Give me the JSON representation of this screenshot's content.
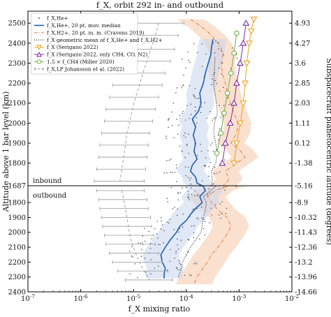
{
  "chart_data": {
    "type": "line",
    "title": "f_X, orbit 292 in- and outbound",
    "xlabel": "f_X mixing ratio",
    "ylabel": "Altitude above 1 bar level (km)",
    "y2label": "Subspacecraft planetocentric latitude (degrees)",
    "xscale": "log",
    "xlim": [
      1e-07,
      0.01
    ],
    "x_ticks": [
      {
        "v": 1e-07,
        "label": "10^-7"
      },
      {
        "v": 1e-06,
        "label": "10^-6"
      },
      {
        "v": 1e-05,
        "label": "10^-5"
      },
      {
        "v": 0.0001,
        "label": "10^-4"
      },
      {
        "v": 0.001,
        "label": "10^-3"
      },
      {
        "v": 0.01,
        "label": "10^-2"
      }
    ],
    "panels": [
      {
        "name": "inbound",
        "ylim": [
          1687,
          2560
        ],
        "y_ticks": [
          "1800",
          "1900",
          "2000",
          "2100",
          "2200",
          "2300",
          "2400",
          "2500"
        ],
        "y2_ticks": [
          {
            "alt": 2500,
            "label": "4.93"
          },
          {
            "alt": 2400,
            "label": "4.27"
          },
          {
            "alt": 2300,
            "label": "3.6"
          },
          {
            "alt": 2200,
            "label": "2.85"
          },
          {
            "alt": 2100,
            "label": "2.03"
          },
          {
            "alt": 2000,
            "label": "1.11"
          },
          {
            "alt": 1900,
            "label": "0.12"
          },
          {
            "alt": 1800,
            "label": "-1.38"
          }
        ]
      },
      {
        "name": "outbound",
        "ylim": [
          1687,
          2400
        ],
        "y_ticks": [
          "1800",
          "1900",
          "2000",
          "2100",
          "2200",
          "2300",
          "2400"
        ],
        "y2_ticks": [
          {
            "alt": 1800,
            "label": "-8.9"
          },
          {
            "alt": 1900,
            "label": "-10.32"
          },
          {
            "alt": 2000,
            "label": "-11.43"
          },
          {
            "alt": 2100,
            "label": "-12.36"
          },
          {
            "alt": 2200,
            "label": "-13.2"
          },
          {
            "alt": 2300,
            "label": "-13.96"
          },
          {
            "alt": 2400,
            "label": "-14.66"
          }
        ]
      }
    ],
    "boundary": {
      "alt": 1687,
      "label": "1687",
      "y2_label": "-5.16"
    },
    "legend": [
      {
        "label": "f_X,He+",
        "style": "gray dots"
      },
      {
        "label": "f_X,He+, 20 pt. mov. median",
        "style": "blue line"
      },
      {
        "label": "f_X,H2+, 20 pt. m. m. (Cravens 2019)",
        "style": "orange dash-dot"
      },
      {
        "label": "f_X geometric mean of f_X,He+ and f_X,H2+",
        "style": "black dotted"
      },
      {
        "label": "f_X (Serigano 2022)",
        "style": "orange triangles"
      },
      {
        "label": "f_X (Serigano 2022, only CH4, CO, N2)",
        "style": "purple triangles"
      },
      {
        "label": "1.5 × f_CH4 (Miller 2020)",
        "style": "green circles"
      },
      {
        "label": "f_X,LP Johansson et al. (2022)",
        "style": "gray dashed error bars"
      }
    ],
    "series": [
      {
        "name": "f_X,He+, 20 pt. mov. median (inbound)",
        "color": "#1f5fb0",
        "points": [
          [
            2420,
            0.00032
          ],
          [
            2380,
            0.0003
          ],
          [
            2340,
            0.00029
          ],
          [
            2300,
            0.00026
          ],
          [
            2250,
            0.00023
          ],
          [
            2200,
            0.00021
          ],
          [
            2150,
            0.00018
          ],
          [
            2100,
            0.00019
          ],
          [
            2060,
            0.00017
          ],
          [
            2020,
            0.00013
          ],
          [
            1980,
            0.00015
          ],
          [
            1940,
            0.000135
          ],
          [
            1900,
            0.00015
          ],
          [
            1860,
            0.00014
          ],
          [
            1820,
            0.00016
          ],
          [
            1790,
            0.00013
          ],
          [
            1760,
            0.00012
          ],
          [
            1730,
            0.00015
          ],
          [
            1700,
            0.00016
          ],
          [
            1687,
            0.0002
          ]
        ]
      },
      {
        "name": "f_X,He+, 20 pt. mov. median (outbound)",
        "color": "#1f5fb0",
        "points": [
          [
            1690,
            0.00021
          ],
          [
            1720,
            0.00023
          ],
          [
            1760,
            0.00018
          ],
          [
            1800,
            0.0002
          ],
          [
            1840,
            0.00015
          ],
          [
            1880,
            0.00012
          ],
          [
            1920,
            0.0001
          ],
          [
            1960,
            7.5e-05
          ],
          [
            2000,
            6.5e-05
          ],
          [
            2050,
            5e-05
          ],
          [
            2100,
            4e-05
          ],
          [
            2150,
            3.3e-05
          ],
          [
            2200,
            3.5e-05
          ],
          [
            2240,
            4e-05
          ],
          [
            2280,
            3.8e-05
          ],
          [
            2310,
            3.8e-05
          ]
        ]
      },
      {
        "name": "f_X,H2+, 20 pt. m. m. (inbound)",
        "color": "#e07a3c",
        "points": [
          [
            2520,
            0.00012
          ],
          [
            2480,
            0.0002
          ],
          [
            2440,
            0.0003
          ],
          [
            2400,
            0.0004
          ],
          [
            2350,
            0.0005
          ],
          [
            2300,
            0.00046
          ],
          [
            2250,
            0.00048
          ],
          [
            2200,
            0.00055
          ],
          [
            2150,
            0.0006
          ],
          [
            2100,
            0.00068
          ],
          [
            2050,
            0.0008
          ],
          [
            2000,
            0.00095
          ],
          [
            1950,
            0.0009
          ],
          [
            1900,
            0.0007
          ],
          [
            1870,
            0.001
          ],
          [
            1830,
            0.0013
          ],
          [
            1800,
            0.0009
          ],
          [
            1760,
            0.00055
          ],
          [
            1720,
            0.00065
          ],
          [
            1687,
            0.0005
          ]
        ]
      },
      {
        "name": "f_X,H2+, 20 pt. m. m. (outbound)",
        "color": "#e07a3c",
        "points": [
          [
            1690,
            0.0006
          ],
          [
            1720,
            0.00035
          ],
          [
            1760,
            0.00025
          ],
          [
            1800,
            0.0003
          ],
          [
            1850,
            0.0004
          ],
          [
            1900,
            0.0006
          ],
          [
            1960,
            0.0007
          ],
          [
            2000,
            0.00062
          ],
          [
            2050,
            0.0005
          ],
          [
            2100,
            0.0004
          ],
          [
            2150,
            0.0003
          ],
          [
            2200,
            0.00025
          ],
          [
            2250,
            0.0002
          ],
          [
            2300,
            0.00016
          ],
          [
            2350,
            0.00014
          ]
        ]
      },
      {
        "name": "f_X geometric mean (inbound)",
        "color": "#333333",
        "points": [
          [
            2330,
            0.00035
          ],
          [
            2250,
            0.00034
          ],
          [
            2200,
            0.00033
          ],
          [
            2150,
            0.00035
          ],
          [
            2100,
            0.00037
          ],
          [
            2050,
            0.00039
          ],
          [
            2000,
            0.00034
          ],
          [
            1950,
            0.00033
          ],
          [
            1900,
            0.00036
          ],
          [
            1850,
            0.00039
          ],
          [
            1800,
            0.00036
          ],
          [
            1760,
            0.0003
          ],
          [
            1720,
            0.00031
          ],
          [
            1687,
            0.0003
          ]
        ]
      },
      {
        "name": "f_X geometric mean (outbound)",
        "color": "#333333",
        "points": [
          [
            1690,
            0.00036
          ],
          [
            1720,
            0.00029
          ],
          [
            1760,
            0.00021
          ],
          [
            1800,
            0.00024
          ],
          [
            1850,
            0.00023
          ],
          [
            1900,
            0.00021
          ],
          [
            1950,
            0.0002
          ],
          [
            2000,
            0.00019
          ],
          [
            2050,
            0.00015
          ],
          [
            2100,
            0.00012
          ],
          [
            2150,
            0.0001
          ],
          [
            2200,
            8.5e-05
          ],
          [
            2250,
            8e-05
          ],
          [
            2300,
            7e-05
          ]
        ]
      },
      {
        "name": "f_X (Serigano 2022)",
        "color": "#f0a01e",
        "marker": "triangle-down",
        "points": [
          [
            2520,
            0.0019
          ],
          [
            2460,
            0.0017
          ],
          [
            2400,
            0.00155
          ],
          [
            2300,
            0.0014
          ],
          [
            2200,
            0.0013
          ],
          [
            2100,
            0.0012
          ],
          [
            2000,
            0.00105
          ],
          [
            1900,
            0.0009
          ],
          [
            1800,
            0.0008
          ]
        ]
      },
      {
        "name": "f_X (Serigano 2022, only CH4, CO, N2)",
        "color": "#7b2a9e",
        "marker": "triangle-up",
        "points": [
          [
            2500,
            0.00135
          ],
          [
            2400,
            0.0012
          ],
          [
            2300,
            0.00105
          ],
          [
            2200,
            0.0009
          ],
          [
            2100,
            0.0008
          ],
          [
            2000,
            0.00068
          ],
          [
            1900,
            0.00055
          ],
          [
            1800,
            0.00048
          ]
        ]
      },
      {
        "name": "1.5 × f_CH4 (Miller 2020)",
        "color": "#6ab04c",
        "marker": "circle",
        "points": [
          [
            2450,
            0.0009
          ],
          [
            2350,
            0.0008
          ],
          [
            2250,
            0.0007
          ],
          [
            2150,
            0.0006
          ],
          [
            2050,
            0.00052
          ],
          [
            1950,
            0.00045
          ],
          [
            1850,
            0.00038
          ]
        ]
      },
      {
        "name": "f_X,LP Johansson et al. (2022) (inbound)",
        "color": "#999999",
        "marker": "errorbar",
        "points": [
          [
            2500,
            3e-05,
            1e-05,
            9e-05
          ],
          [
            2440,
            2.6e-05,
            9e-06,
            7e-05
          ],
          [
            2370,
            2.1e-05,
            7e-06,
            6e-05
          ],
          [
            2310,
            1.8e-05,
            6e-06,
            5e-05
          ],
          [
            2250,
            1.5e-05,
            5e-06,
            4e-05
          ],
          [
            2190,
            1.3e-05,
            4e-06,
            3.5e-05
          ],
          [
            2130,
            1.1e-05,
            3.5e-06,
            3e-05
          ],
          [
            2070,
            9.5e-06,
            3e-06,
            2.6e-05
          ],
          [
            2010,
            8.5e-06,
            2.8e-06,
            2.3e-05
          ],
          [
            1950,
            7.5e-06,
            2.5e-06,
            2e-05
          ],
          [
            1890,
            7e-06,
            2.3e-06,
            1.9e-05
          ],
          [
            1830,
            6.5e-06,
            2.2e-06,
            1.8e-05
          ],
          [
            1770,
            6e-06,
            2e-06,
            1.7e-05
          ],
          [
            1710,
            5.5e-06,
            1.8e-06,
            1.6e-05
          ]
        ]
      },
      {
        "name": "f_X,LP Johansson et al. (2022) (outbound)",
        "color": "#999999",
        "marker": "errorbar",
        "points": [
          [
            1720,
            6e-06,
            2e-06,
            1.6e-05
          ],
          [
            1780,
            6.5e-06,
            2.2e-06,
            1.8e-05
          ],
          [
            1840,
            7e-06,
            2.3e-06,
            1.9e-05
          ],
          [
            1900,
            7.5e-06,
            2.5e-06,
            2.1e-05
          ],
          [
            1960,
            8e-06,
            2.6e-06,
            2.2e-05
          ],
          [
            2020,
            8.5e-06,
            2.8e-06,
            2.4e-05
          ],
          [
            2080,
            9.5e-06,
            3e-06,
            2.6e-05
          ],
          [
            2140,
            1.1e-05,
            3.5e-06,
            3e-05
          ],
          [
            2200,
            1.3e-05,
            4e-06,
            3.5e-05
          ],
          [
            2260,
            1.6e-05,
            5e-06,
            4.5e-05
          ],
          [
            2320,
            2e-05,
            7e-06,
            5.5e-05
          ]
        ]
      }
    ]
  }
}
